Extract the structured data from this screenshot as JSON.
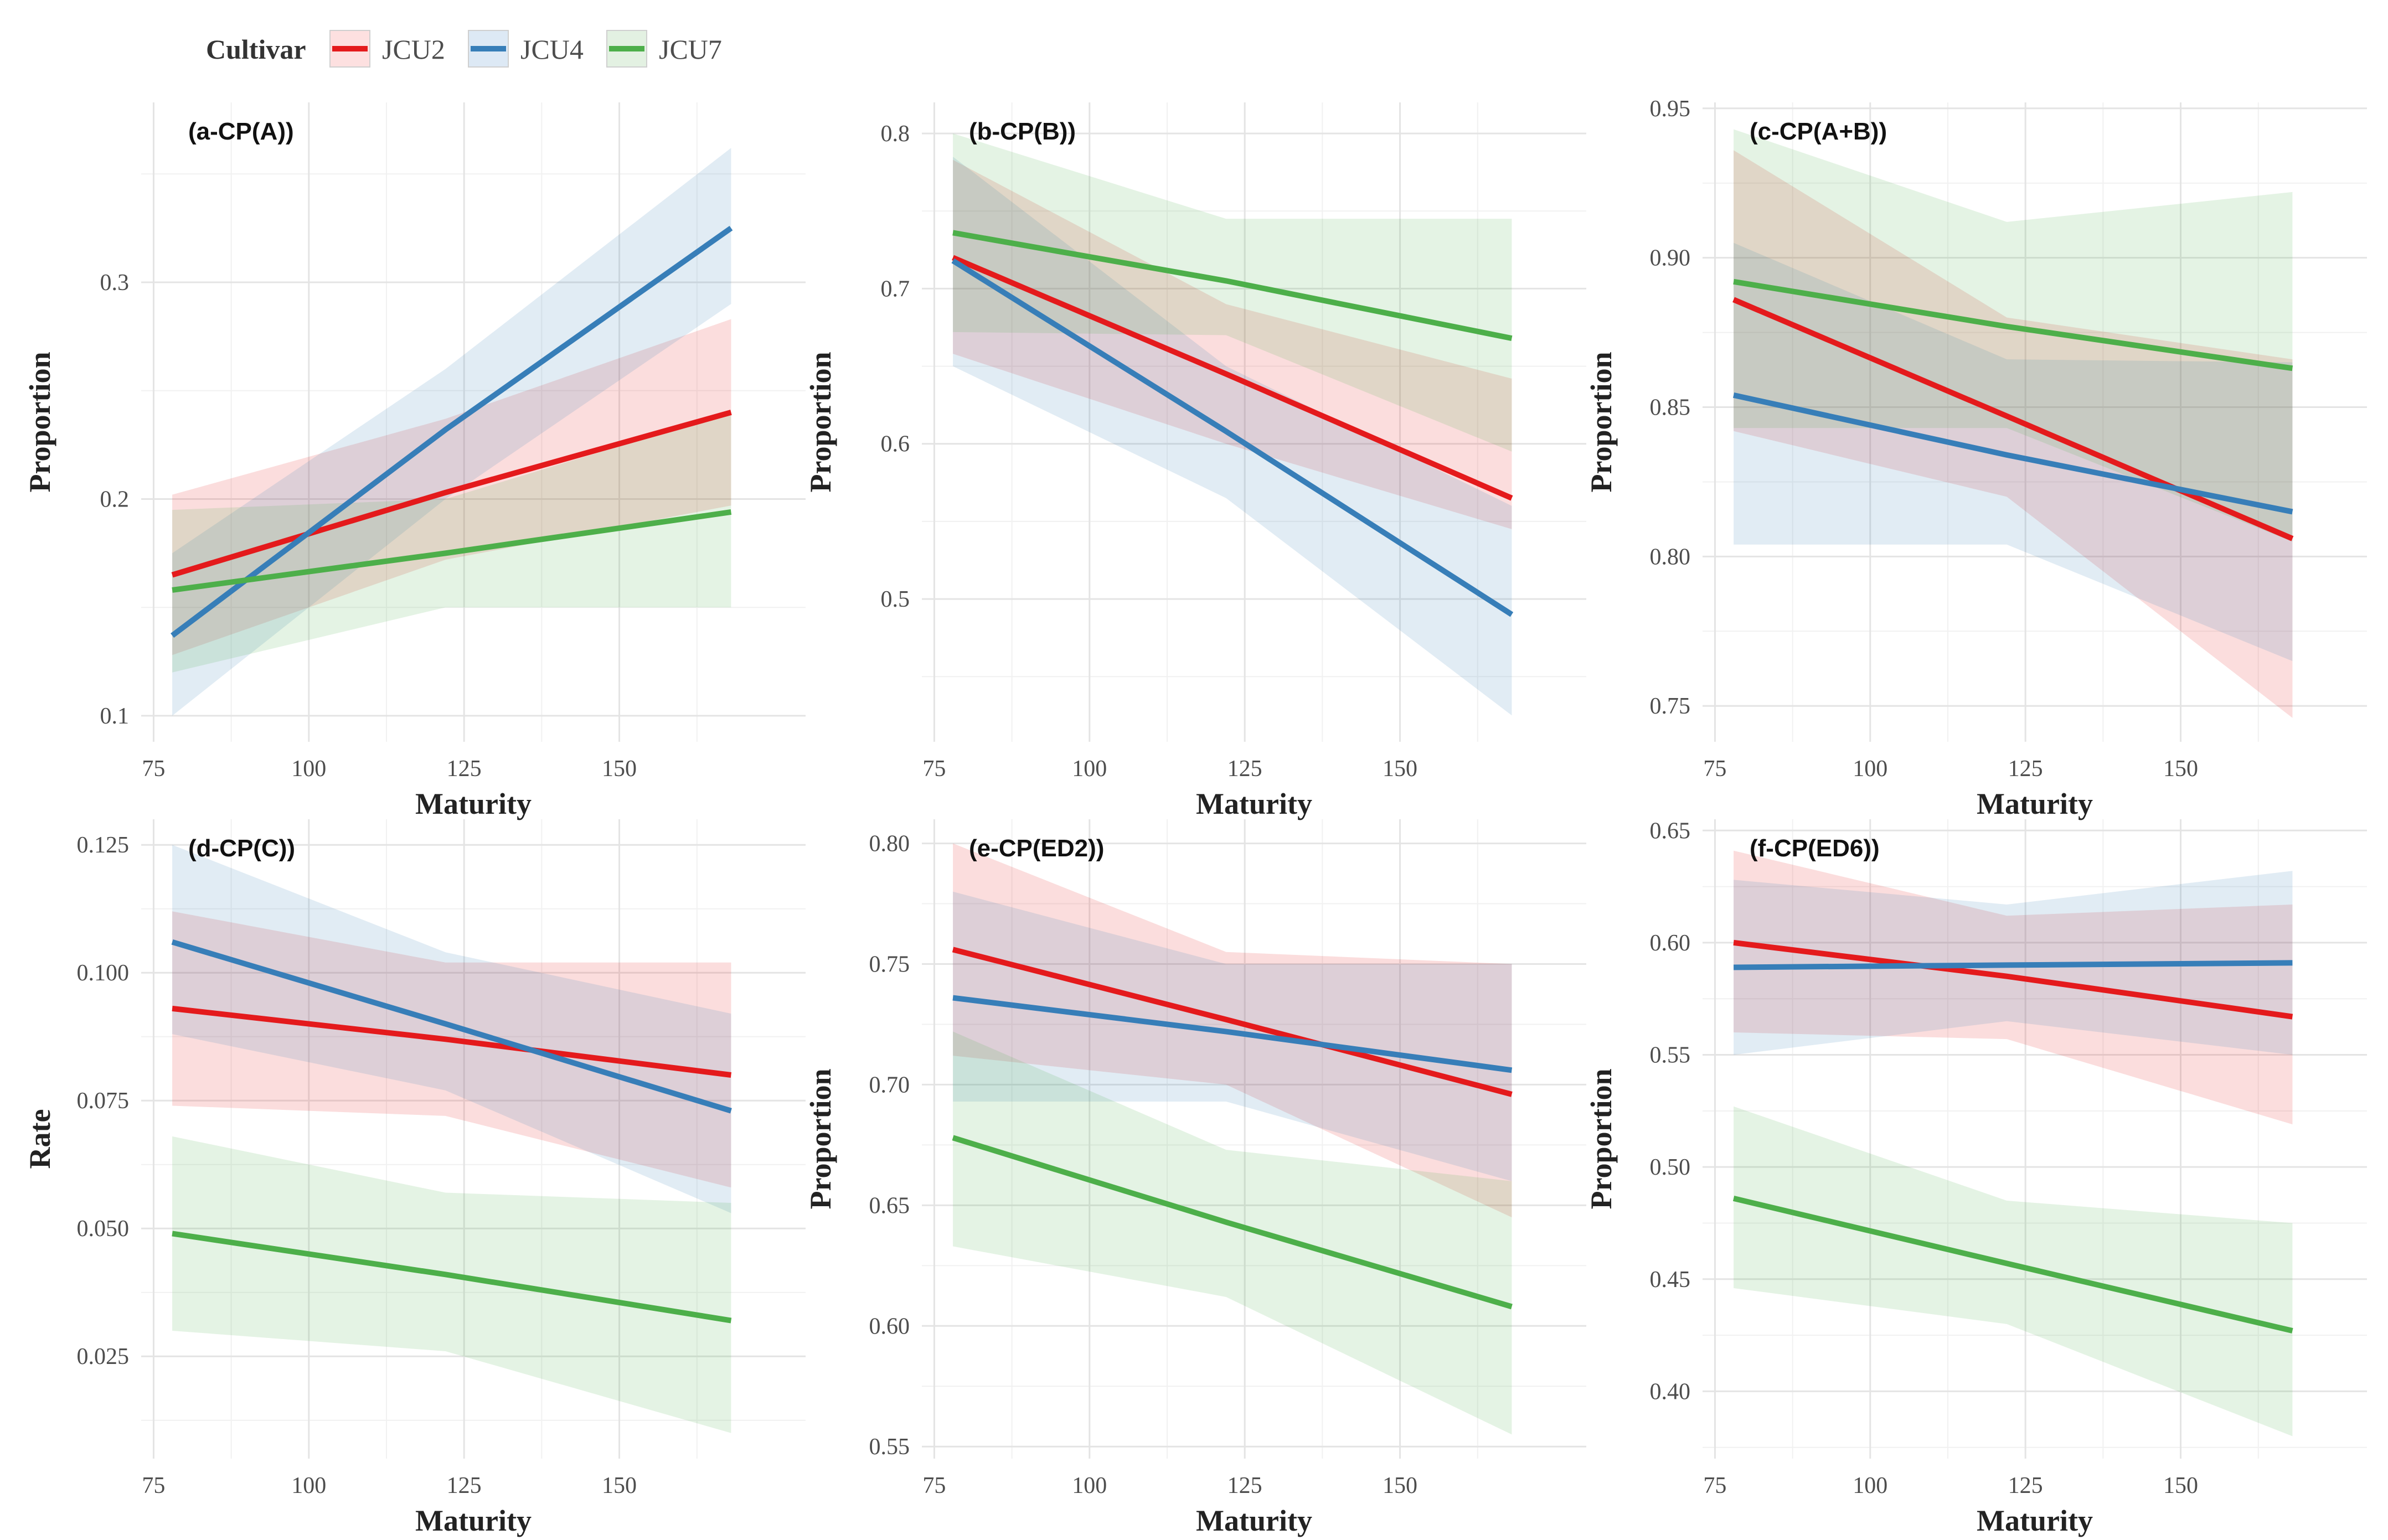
{
  "legend": {
    "title": "Cultivar",
    "items": [
      {
        "label": "JCU2",
        "color": "#e41a1c"
      },
      {
        "label": "JCU4",
        "color": "#377eb8"
      },
      {
        "label": "JCU7",
        "color": "#4daf4a"
      }
    ]
  },
  "chart_data": [
    {
      "type": "line",
      "title": "(a-CP(A))",
      "xlabel": "Maturity",
      "ylabel": "Proportion",
      "xlim": [
        73,
        180
      ],
      "ylim": [
        0.088,
        0.383
      ],
      "xticks": [
        75,
        100,
        125,
        150
      ],
      "yticks": [
        0.1,
        0.2,
        0.3
      ],
      "ytick_labels": [
        "0.1",
        "0.2",
        "0.3"
      ],
      "series": [
        {
          "name": "JCU2",
          "x": [
            78,
            122,
            168
          ],
          "y": [
            0.165,
            0.203,
            0.24
          ],
          "lower": [
            0.128,
            0.172,
            0.197
          ],
          "upper": [
            0.202,
            0.237,
            0.283
          ]
        },
        {
          "name": "JCU4",
          "x": [
            78,
            122,
            168
          ],
          "y": [
            0.137,
            0.232,
            0.325
          ],
          "lower": [
            0.1,
            0.2,
            0.29
          ],
          "upper": [
            0.175,
            0.26,
            0.362
          ]
        },
        {
          "name": "JCU7",
          "x": [
            78,
            122,
            168
          ],
          "y": [
            0.158,
            0.175,
            0.194
          ],
          "lower": [
            0.12,
            0.15,
            0.15
          ],
          "upper": [
            0.195,
            0.2,
            0.24
          ]
        }
      ]
    },
    {
      "type": "line",
      "title": "(b-CP(B))",
      "xlabel": "Maturity",
      "ylabel": "Proportion",
      "xlim": [
        73,
        180
      ],
      "ylim": [
        0.408,
        0.82
      ],
      "xticks": [
        75,
        100,
        125,
        150
      ],
      "yticks": [
        0.5,
        0.6,
        0.7,
        0.8
      ],
      "ytick_labels": [
        "0.5",
        "0.6",
        "0.7",
        "0.8"
      ],
      "series": [
        {
          "name": "JCU2",
          "x": [
            78,
            122,
            168
          ],
          "y": [
            0.72,
            0.645,
            0.565
          ],
          "lower": [
            0.658,
            0.6,
            0.545
          ],
          "upper": [
            0.783,
            0.69,
            0.642
          ]
        },
        {
          "name": "JCU4",
          "x": [
            78,
            122,
            168
          ],
          "y": [
            0.718,
            0.608,
            0.49
          ],
          "lower": [
            0.65,
            0.565,
            0.425
          ],
          "upper": [
            0.785,
            0.65,
            0.56
          ]
        },
        {
          "name": "JCU7",
          "x": [
            78,
            122,
            168
          ],
          "y": [
            0.736,
            0.705,
            0.668
          ],
          "lower": [
            0.672,
            0.67,
            0.595
          ],
          "upper": [
            0.8,
            0.745,
            0.745
          ]
        }
      ]
    },
    {
      "type": "line",
      "title": "(c-CP(A+B))",
      "xlabel": "Maturity",
      "ylabel": "Proportion",
      "xlim": [
        73,
        180
      ],
      "ylim": [
        0.738,
        0.952
      ],
      "xticks": [
        75,
        100,
        125,
        150
      ],
      "yticks": [
        0.75,
        0.8,
        0.85,
        0.9,
        0.95
      ],
      "ytick_labels": [
        "0.75",
        "0.80",
        "0.85",
        "0.90",
        "0.95"
      ],
      "series": [
        {
          "name": "JCU2",
          "x": [
            78,
            122,
            168
          ],
          "y": [
            0.886,
            0.847,
            0.806
          ],
          "lower": [
            0.842,
            0.82,
            0.746
          ],
          "upper": [
            0.936,
            0.88,
            0.866
          ]
        },
        {
          "name": "JCU4",
          "x": [
            78,
            122,
            168
          ],
          "y": [
            0.854,
            0.834,
            0.815
          ],
          "lower": [
            0.804,
            0.804,
            0.765
          ],
          "upper": [
            0.905,
            0.866,
            0.865
          ]
        },
        {
          "name": "JCU7",
          "x": [
            78,
            122,
            168
          ],
          "y": [
            0.892,
            0.877,
            0.863
          ],
          "lower": [
            0.843,
            0.843,
            0.805
          ],
          "upper": [
            0.943,
            0.912,
            0.922
          ]
        }
      ]
    },
    {
      "type": "line",
      "title": "(d-CP(C))",
      "xlabel": "Maturity",
      "ylabel": "Rate",
      "xlim": [
        73,
        180
      ],
      "ylim": [
        0.005,
        0.13
      ],
      "xticks": [
        75,
        100,
        125,
        150
      ],
      "yticks": [
        0.025,
        0.05,
        0.075,
        0.1,
        0.125
      ],
      "ytick_labels": [
        "0.025",
        "0.050",
        "0.075",
        "0.100",
        "0.125"
      ],
      "series": [
        {
          "name": "JCU2",
          "x": [
            78,
            122,
            168
          ],
          "y": [
            0.093,
            0.087,
            0.08
          ],
          "lower": [
            0.074,
            0.072,
            0.058
          ],
          "upper": [
            0.112,
            0.102,
            0.102
          ]
        },
        {
          "name": "JCU4",
          "x": [
            78,
            122,
            168
          ],
          "y": [
            0.106,
            0.09,
            0.073
          ],
          "lower": [
            0.088,
            0.077,
            0.053
          ],
          "upper": [
            0.125,
            0.104,
            0.092
          ]
        },
        {
          "name": "JCU7",
          "x": [
            78,
            122,
            168
          ],
          "y": [
            0.049,
            0.041,
            0.032
          ],
          "lower": [
            0.03,
            0.026,
            0.01
          ],
          "upper": [
            0.068,
            0.057,
            0.055
          ]
        }
      ]
    },
    {
      "type": "line",
      "title": "(e-CP(ED2))",
      "xlabel": "Maturity",
      "ylabel": "Proportion",
      "xlim": [
        73,
        180
      ],
      "ylim": [
        0.545,
        0.81
      ],
      "xticks": [
        75,
        100,
        125,
        150
      ],
      "yticks": [
        0.55,
        0.6,
        0.65,
        0.7,
        0.75,
        0.8
      ],
      "ytick_labels": [
        "0.55",
        "0.60",
        "0.65",
        "0.70",
        "0.75",
        "0.80"
      ],
      "series": [
        {
          "name": "JCU2",
          "x": [
            78,
            122,
            168
          ],
          "y": [
            0.756,
            0.727,
            0.696
          ],
          "lower": [
            0.712,
            0.7,
            0.645
          ],
          "upper": [
            0.8,
            0.755,
            0.75
          ]
        },
        {
          "name": "JCU4",
          "x": [
            78,
            122,
            168
          ],
          "y": [
            0.736,
            0.722,
            0.706
          ],
          "lower": [
            0.693,
            0.693,
            0.66
          ],
          "upper": [
            0.78,
            0.75,
            0.75
          ]
        },
        {
          "name": "JCU7",
          "x": [
            78,
            122,
            168
          ],
          "y": [
            0.678,
            0.643,
            0.608
          ],
          "lower": [
            0.633,
            0.612,
            0.555
          ],
          "upper": [
            0.722,
            0.673,
            0.66
          ]
        }
      ]
    },
    {
      "type": "line",
      "title": "(f-CP(ED6))",
      "xlabel": "Maturity",
      "ylabel": "Proportion",
      "xlim": [
        73,
        180
      ],
      "ylim": [
        0.37,
        0.655
      ],
      "xticks": [
        75,
        100,
        125,
        150
      ],
      "yticks": [
        0.4,
        0.45,
        0.5,
        0.55,
        0.6,
        0.65
      ],
      "ytick_labels": [
        "0.40",
        "0.45",
        "0.50",
        "0.55",
        "0.60",
        "0.65"
      ],
      "series": [
        {
          "name": "JCU2",
          "x": [
            78,
            122,
            168
          ],
          "y": [
            0.6,
            0.585,
            0.567
          ],
          "lower": [
            0.56,
            0.557,
            0.519
          ],
          "upper": [
            0.641,
            0.612,
            0.617
          ]
        },
        {
          "name": "JCU4",
          "x": [
            78,
            122,
            168
          ],
          "y": [
            0.589,
            0.59,
            0.591
          ],
          "lower": [
            0.55,
            0.565,
            0.55
          ],
          "upper": [
            0.628,
            0.617,
            0.632
          ]
        },
        {
          "name": "JCU7",
          "x": [
            78,
            122,
            168
          ],
          "y": [
            0.486,
            0.457,
            0.427
          ],
          "lower": [
            0.446,
            0.43,
            0.38
          ],
          "upper": [
            0.527,
            0.485,
            0.475
          ]
        }
      ]
    }
  ]
}
